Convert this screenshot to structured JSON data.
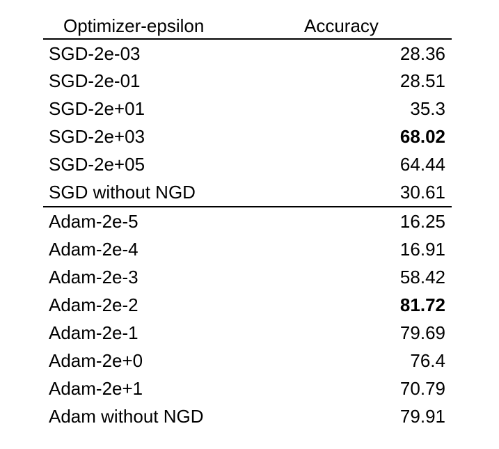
{
  "table": {
    "headers": {
      "method": "Optimizer-epsilon",
      "accuracy": "Accuracy"
    },
    "groups": [
      {
        "rows": [
          {
            "method": "SGD-2e-03",
            "accuracy": "28.36",
            "bold": false
          },
          {
            "method": "SGD-2e-01",
            "accuracy": "28.51",
            "bold": false
          },
          {
            "method": "SGD-2e+01",
            "accuracy": "35.3",
            "bold": false
          },
          {
            "method": "SGD-2e+03",
            "accuracy": "68.02",
            "bold": true
          },
          {
            "method": "SGD-2e+05",
            "accuracy": "64.44",
            "bold": false
          },
          {
            "method": "SGD without NGD",
            "accuracy": "30.61",
            "bold": false
          }
        ]
      },
      {
        "rows": [
          {
            "method": "Adam-2e-5",
            "accuracy": "16.25",
            "bold": false
          },
          {
            "method": "Adam-2e-4",
            "accuracy": "16.91",
            "bold": false
          },
          {
            "method": "Adam-2e-3",
            "accuracy": "58.42",
            "bold": false
          },
          {
            "method": "Adam-2e-2",
            "accuracy": "81.72",
            "bold": true
          },
          {
            "method": "Adam-2e-1",
            "accuracy": "79.69",
            "bold": false
          },
          {
            "method": "Adam-2e+0",
            "accuracy": "76.4",
            "bold": false
          },
          {
            "method": "Adam-2e+1",
            "accuracy": "70.79",
            "bold": false
          },
          {
            "method": "Adam without NGD",
            "accuracy": "79.91",
            "bold": false
          }
        ]
      }
    ]
  }
}
